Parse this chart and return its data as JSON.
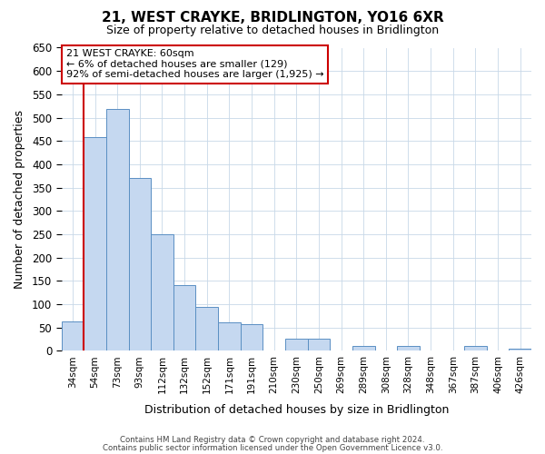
{
  "title": "21, WEST CRAYKE, BRIDLINGTON, YO16 6XR",
  "subtitle": "Size of property relative to detached houses in Bridlington",
  "xlabel": "Distribution of detached houses by size in Bridlington",
  "ylabel": "Number of detached properties",
  "bin_labels": [
    "34sqm",
    "54sqm",
    "73sqm",
    "93sqm",
    "112sqm",
    "132sqm",
    "152sqm",
    "171sqm",
    "191sqm",
    "210sqm",
    "230sqm",
    "250sqm",
    "269sqm",
    "289sqm",
    "308sqm",
    "328sqm",
    "348sqm",
    "367sqm",
    "387sqm",
    "406sqm",
    "426sqm"
  ],
  "bar_values": [
    63,
    458,
    519,
    370,
    249,
    140,
    95,
    62,
    57,
    0,
    27,
    27,
    0,
    10,
    0,
    10,
    0,
    0,
    10,
    0,
    5
  ],
  "bar_color": "#c5d8f0",
  "bar_edge_color": "#5a8fc3",
  "vline_color": "#cc0000",
  "ylim": [
    0,
    650
  ],
  "yticks": [
    0,
    50,
    100,
    150,
    200,
    250,
    300,
    350,
    400,
    450,
    500,
    550,
    600,
    650
  ],
  "annotation_title": "21 WEST CRAYKE: 60sqm",
  "annotation_line1": "← 6% of detached houses are smaller (129)",
  "annotation_line2": "92% of semi-detached houses are larger (1,925) →",
  "annotation_box_color": "#cc0000",
  "footer_line1": "Contains HM Land Registry data © Crown copyright and database right 2024.",
  "footer_line2": "Contains public sector information licensed under the Open Government Licence v3.0.",
  "background_color": "#ffffff",
  "grid_color": "#c8d8e8",
  "vline_bin_index": 1
}
